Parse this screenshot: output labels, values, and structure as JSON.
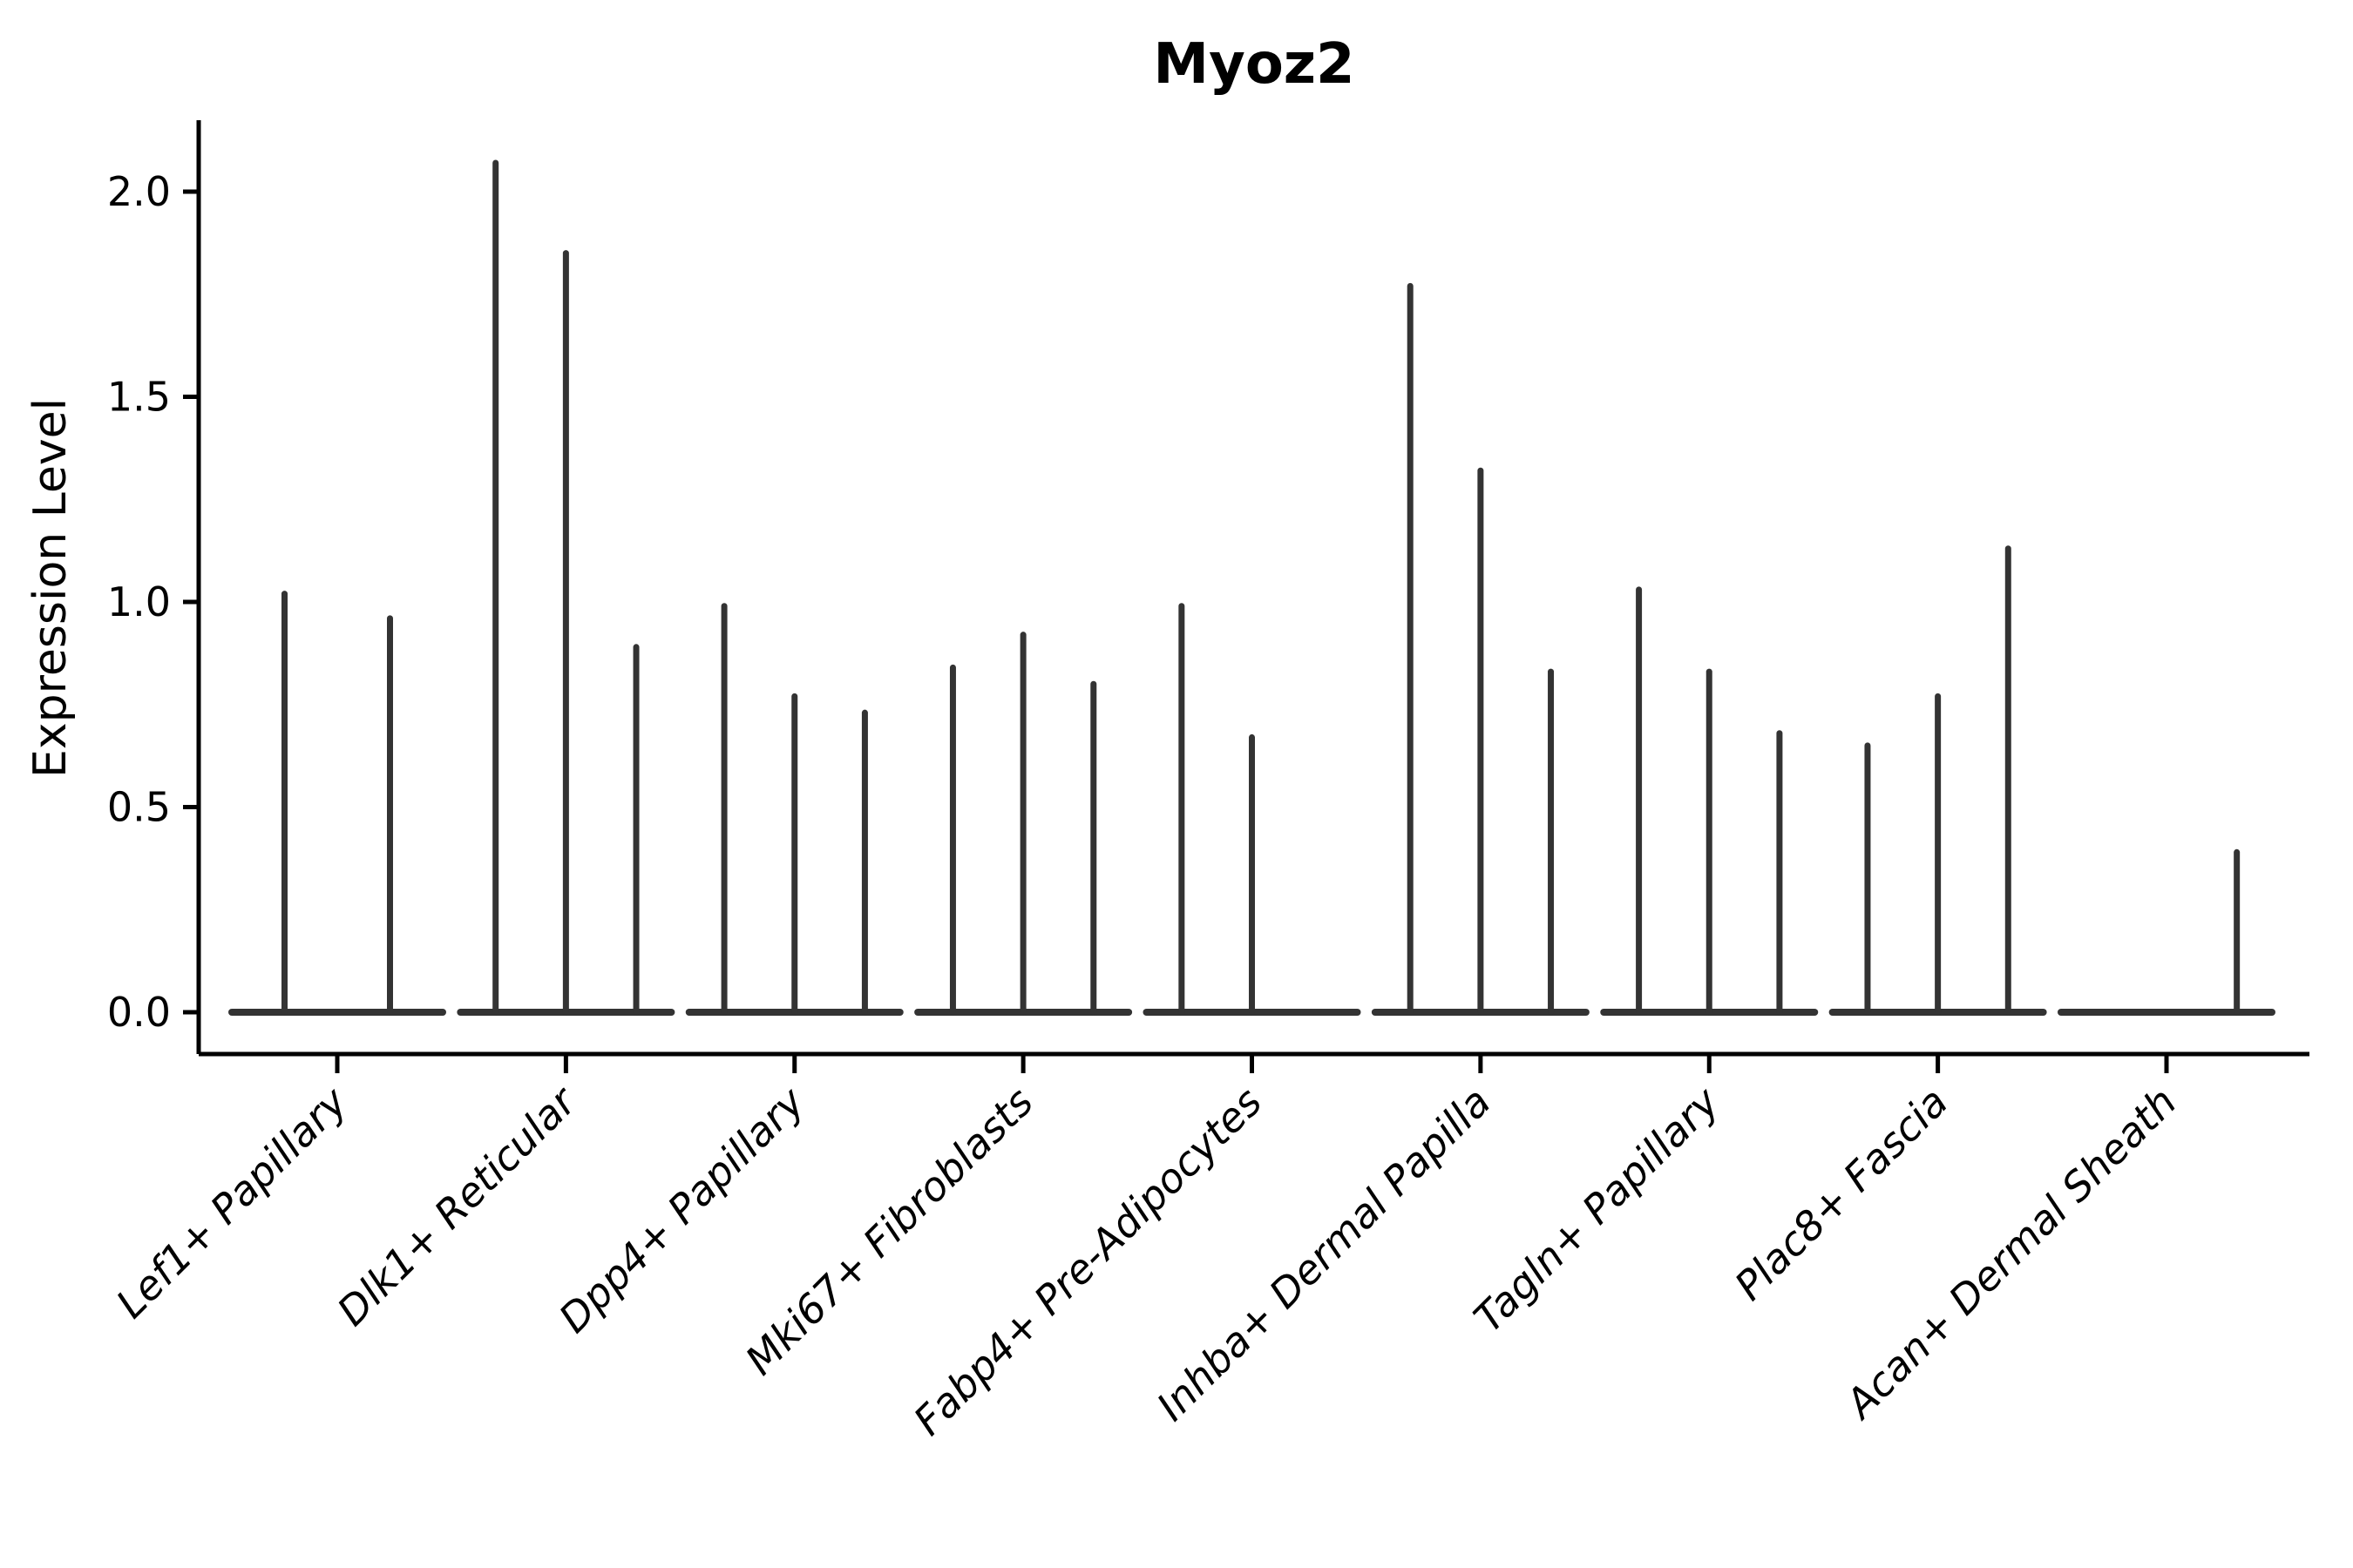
{
  "figure": {
    "background_color": "#ffffff",
    "axis_color": "#000000",
    "violin_color": "#333333"
  },
  "chart_data": {
    "type": "violin",
    "title": "Myoz2",
    "xlabel": "",
    "ylabel": "Expression Level",
    "legend_position": "none",
    "grid": false,
    "ylim": [
      -0.1,
      2.17
    ],
    "ytick_values": [
      0.0,
      0.5,
      1.0,
      1.5,
      2.0
    ],
    "ytick_labels": [
      "0.0",
      "0.5",
      "1.0",
      "1.5",
      "2.0"
    ],
    "categories": [
      "Lef1+ Papillary",
      "Dlk1+ Reticular",
      "Dpp4+ Papillary",
      "Mki67+ Fibroblasts",
      "Fabp4+ Pre-Adipocytes",
      "Inhba+ Dermal Papilla",
      "Tagln+ Papillary",
      "Plac8+ Fascia",
      "Acan+ Dermal Sheath"
    ],
    "violins_max_expression_per_category": [
      [
        1.02,
        0.96
      ],
      [
        2.07,
        1.85,
        0.89
      ],
      [
        0.99,
        0.77,
        0.73
      ],
      [
        0.84,
        0.92,
        0.8
      ],
      [
        0.99,
        0.67,
        0.0
      ],
      [
        1.77,
        1.32,
        0.83
      ],
      [
        1.03,
        0.83,
        0.68
      ],
      [
        0.65,
        0.77,
        1.13
      ],
      [
        0.0,
        0.0,
        0.39
      ]
    ]
  }
}
